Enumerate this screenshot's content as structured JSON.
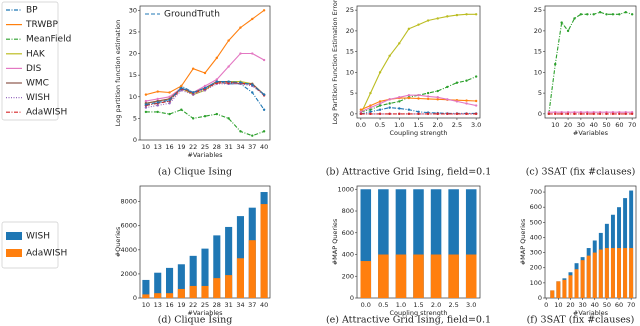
{
  "chart_data": [
    {
      "type": "line",
      "caption": "(a) Clique Ising",
      "xlabel": "#Variables",
      "ylabel": "Log partition function estimation",
      "categories": [
        "10",
        "13",
        "16",
        "19",
        "22",
        "25",
        "28",
        "31",
        "34",
        "37",
        "40"
      ],
      "ylim": [
        0,
        31
      ],
      "yticks": [
        0,
        5,
        10,
        15,
        20,
        25,
        30
      ],
      "series": [
        {
          "name": "BP",
          "color": "#1f77b4",
          "style": "dashdot",
          "values": [
            8,
            8.5,
            9,
            12.5,
            11,
            12,
            13.5,
            13,
            13,
            11,
            7
          ]
        },
        {
          "name": "TRWBP",
          "color": "#ff7f0e",
          "style": "solid",
          "values": [
            10.5,
            11.2,
            11,
            12.5,
            16.5,
            15.5,
            19,
            23,
            26,
            28,
            30
          ]
        },
        {
          "name": "MeanField",
          "color": "#2ca02c",
          "style": "dashdot",
          "values": [
            6.5,
            6.5,
            6,
            7,
            5,
            5.5,
            6,
            5,
            2,
            1,
            2
          ]
        },
        {
          "name": "HAK",
          "color": "#bcbd22",
          "style": "solid",
          "values": [
            8.5,
            9,
            9.5,
            12,
            10.5,
            11.5,
            13.5,
            13.5,
            13.5,
            13,
            10.5
          ]
        },
        {
          "name": "DIS",
          "color": "#e377c2",
          "style": "solid",
          "values": [
            9,
            9.5,
            10,
            12,
            11,
            12.5,
            14,
            17,
            20,
            20,
            18.5
          ]
        },
        {
          "name": "WMC",
          "color": "#8c564b",
          "style": "solid",
          "values": [
            8.5,
            9,
            9.5,
            12,
            11,
            12,
            13.5,
            13.5,
            13,
            13,
            10.5
          ]
        },
        {
          "name": "WISH",
          "color": "#9467bd",
          "style": "dotted",
          "values": [
            7.5,
            8,
            8.5,
            11.5,
            10.5,
            11.5,
            13,
            13,
            13,
            12.5,
            10.5
          ]
        },
        {
          "name": "AdaWISH",
          "color": "#d62728",
          "style": "dashdot",
          "values": [
            8,
            8.5,
            9,
            11.8,
            10.8,
            11.8,
            13.2,
            13.2,
            13.2,
            12.8,
            10.3
          ]
        }
      ],
      "ground_truth": {
        "name": "GroundTruth",
        "color": "#1f77b4",
        "style": "dashed",
        "values": [
          8.2,
          8.7,
          9.2,
          12,
          11,
          12,
          13.5,
          13.5,
          13.3,
          12.8,
          10.5
        ]
      }
    },
    {
      "type": "line",
      "caption": "(b) Attractive Grid Ising, field=0.1",
      "xlabel": "Coupling strength",
      "ylabel": "Log Partition Function Estimation Error",
      "x": [
        0,
        0.25,
        0.5,
        0.75,
        1,
        1.25,
        1.5,
        1.75,
        2,
        2.25,
        2.5,
        2.75,
        3
      ],
      "xlim": [
        -0.1,
        3.1
      ],
      "xticks": [
        {
          "value": 0,
          "label": "0.0"
        },
        {
          "value": 0.5,
          "label": "0.5"
        },
        {
          "value": 1,
          "label": "1.0"
        },
        {
          "value": 1.5,
          "label": "1.5"
        },
        {
          "value": 2,
          "label": "2.0"
        },
        {
          "value": 2.5,
          "label": "2.5"
        },
        {
          "value": 3,
          "label": "3.0"
        }
      ],
      "ylim": [
        -1,
        26
      ],
      "yticks": [
        0,
        5,
        10,
        15,
        20,
        25
      ],
      "series": [
        {
          "color": "#bcbd22",
          "style": "solid",
          "values": [
            0,
            5,
            10,
            14,
            17,
            20.5,
            21.5,
            22.5,
            23,
            23.5,
            23.8,
            24,
            24
          ]
        },
        {
          "color": "#2ca02c",
          "style": "dashdot",
          "values": [
            0.5,
            1,
            2,
            2.5,
            3,
            4,
            4.5,
            5,
            5.5,
            6.5,
            7.5,
            8,
            9
          ]
        },
        {
          "color": "#ff7f0e",
          "style": "solid",
          "values": [
            1,
            2,
            3,
            3.5,
            3.8,
            3.8,
            3.7,
            3.6,
            3.5,
            3.4,
            3.3,
            3.2,
            3.1
          ]
        },
        {
          "color": "#e377c2",
          "style": "solid",
          "values": [
            0.5,
            1.5,
            2.5,
            3.5,
            4,
            4.5,
            4.5,
            4.2,
            4,
            3.5,
            3,
            2.5,
            2
          ]
        },
        {
          "color": "#1f77b4",
          "style": "dashdot",
          "values": [
            0,
            0.5,
            1,
            1.5,
            1.3,
            1,
            0.5,
            0.3,
            0.2,
            0.1,
            0.1,
            0.1,
            0.1
          ]
        },
        {
          "color": "#9467bd",
          "style": "dotted",
          "values": [
            0,
            0,
            0,
            0,
            0,
            0,
            0,
            0,
            0,
            0,
            0,
            0,
            0
          ]
        },
        {
          "color": "#d62728",
          "style": "dashdot",
          "values": [
            0,
            0,
            0,
            0,
            0,
            0,
            0,
            0,
            0,
            0,
            0,
            0,
            0
          ]
        }
      ]
    },
    {
      "type": "line",
      "caption": "(c) 3SAT (fix #clauses)",
      "xlabel": "#Variables",
      "x": [
        5,
        10,
        15,
        20,
        25,
        30,
        35,
        40,
        45,
        50,
        55,
        60,
        65,
        70
      ],
      "xlim": [
        2,
        73
      ],
      "xticks": [
        10,
        20,
        30,
        40,
        50,
        60,
        70
      ],
      "ylim": [
        -1,
        26
      ],
      "yticks": [
        0,
        5,
        10,
        15,
        20,
        25
      ],
      "series": [
        {
          "color": "#2ca02c",
          "style": "dashdot",
          "values": [
            0,
            12,
            22,
            20,
            23,
            24,
            24,
            24,
            24.5,
            24,
            24,
            24,
            24.5,
            24
          ]
        },
        {
          "color": "#e377c2",
          "style": "solid",
          "values": [
            0.4,
            0.4,
            0.4,
            0.4,
            0.4,
            0.4,
            0.4,
            0.4,
            0.4,
            0.4,
            0.4,
            0.4,
            0.4,
            0.4
          ]
        },
        {
          "color": "#d62728",
          "style": "dashdot",
          "values": [
            0,
            0,
            0,
            0,
            0,
            0,
            0,
            0,
            0,
            0,
            0,
            0,
            0,
            0
          ]
        }
      ]
    },
    {
      "type": "bar",
      "caption": "(d) Clique Ising",
      "xlabel": "#Variables",
      "ylabel": "#Queries",
      "categories": [
        "10",
        "13",
        "16",
        "19",
        "22",
        "25",
        "28",
        "31",
        "34",
        "37",
        "40"
      ],
      "ylim": [
        0,
        9300
      ],
      "yticks": [
        0,
        2000,
        4000,
        6000,
        8000
      ],
      "series": [
        {
          "name": "WISH",
          "color": "#1f77b4",
          "values": [
            1500,
            2100,
            2500,
            2800,
            3500,
            4100,
            5200,
            5900,
            6800,
            7500,
            8800
          ]
        },
        {
          "name": "AdaWISH",
          "color": "#ff7f0e",
          "values": [
            300,
            400,
            400,
            750,
            1000,
            1000,
            1650,
            1900,
            3300,
            4800,
            7800
          ]
        }
      ]
    },
    {
      "type": "bar",
      "caption": "(e) Attractive Grid Ising, field=0.1",
      "xlabel": "Coupling strength",
      "ylabel": "#MAP Queries",
      "categories": [
        "0.0",
        "0.5",
        "1.0",
        "1.5",
        "2.0",
        "2.5",
        "3.0"
      ],
      "ylim": [
        0,
        1030
      ],
      "yticks": [
        0,
        200,
        400,
        600,
        800,
        1000
      ],
      "series": [
        {
          "color": "#1f77b4",
          "values": [
            1000,
            1000,
            1000,
            1000,
            1000,
            1000,
            1000
          ]
        },
        {
          "color": "#ff7f0e",
          "values": [
            340,
            400,
            400,
            400,
            400,
            400,
            400
          ]
        }
      ]
    },
    {
      "type": "bar",
      "caption": "(f) 3SAT (fix #clauses)",
      "xlabel": "#Variables",
      "ylabel": "#MAP Queries",
      "x": [
        5,
        10,
        15,
        20,
        25,
        30,
        35,
        40,
        45,
        50,
        55,
        60,
        65,
        70
      ],
      "xlim": [
        -1,
        74
      ],
      "xticks": [
        0,
        10,
        20,
        30,
        40,
        50,
        60,
        70
      ],
      "ylim": [
        0,
        740
      ],
      "yticks": [
        0,
        100,
        200,
        300,
        400,
        500,
        600,
        700
      ],
      "series": [
        {
          "color": "#1f77b4",
          "values": [
            50,
            110,
            130,
            170,
            230,
            270,
            330,
            380,
            430,
            490,
            550,
            600,
            660,
            710
          ]
        },
        {
          "color": "#ff7f0e",
          "values": [
            50,
            110,
            120,
            150,
            190,
            250,
            280,
            300,
            320,
            330,
            330,
            330,
            330,
            330
          ]
        }
      ]
    }
  ]
}
